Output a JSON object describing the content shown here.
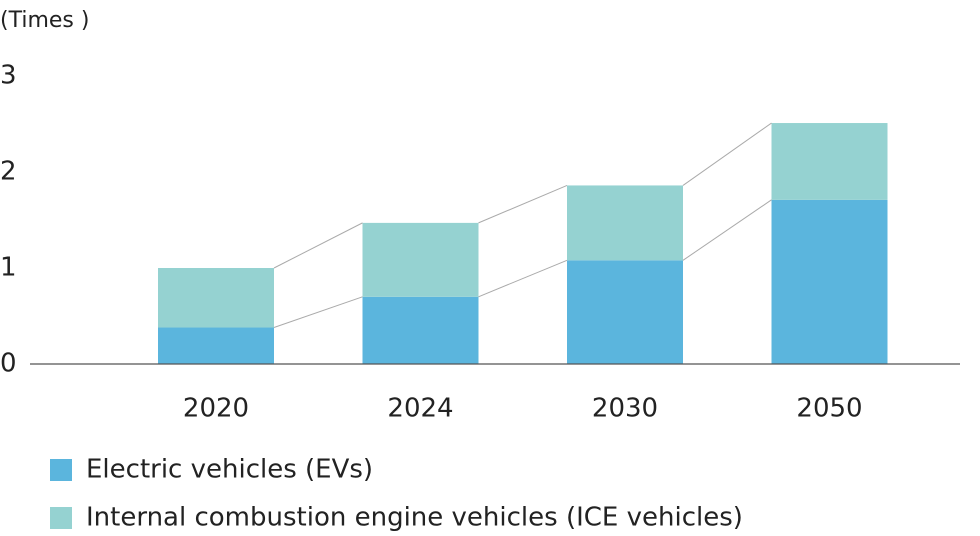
{
  "chart_data": {
    "type": "stacked_bar",
    "y_label": "(Times )",
    "categories": [
      "2020",
      "2024",
      "2030",
      "2050"
    ],
    "series": [
      {
        "name": "Electric vehicles (EVs)",
        "color": "#5bb5dd",
        "values": [
          0.38,
          0.7,
          1.08,
          1.71
        ]
      },
      {
        "name": "Internal combustion engine vehicles (ICE vehicles)",
        "color": "#95d2d1",
        "values": [
          0.62,
          0.77,
          0.78,
          0.8
        ]
      }
    ],
    "ylim": [
      0,
      3
    ],
    "yticks": [
      0,
      1,
      2,
      3
    ],
    "grid": false
  }
}
